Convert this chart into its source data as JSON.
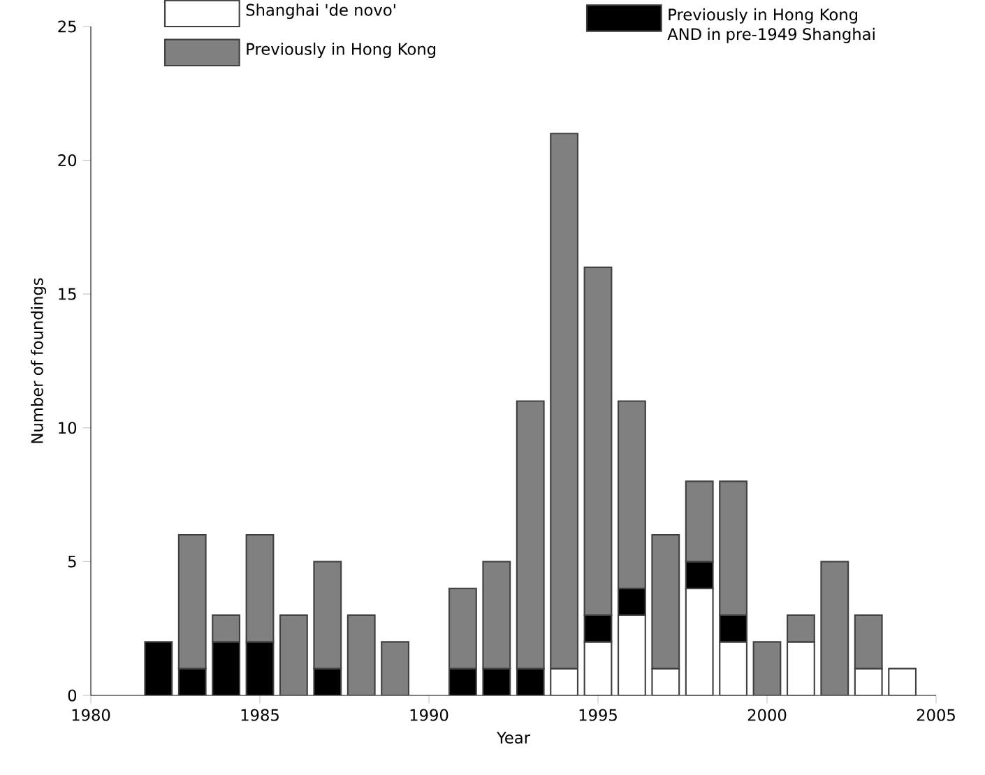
{
  "chart_data": {
    "type": "bar",
    "stacked": true,
    "xlabel": "Year",
    "ylabel": "Number of foundings",
    "x": [
      1982,
      1983,
      1984,
      1985,
      1986,
      1987,
      1988,
      1989,
      1990,
      1991,
      1992,
      1993,
      1994,
      1995,
      1996,
      1997,
      1998,
      1999,
      2000,
      2001,
      2002,
      2003,
      2004
    ],
    "series": [
      {
        "name": "Shanghai 'de novo'",
        "color": "#ffffff",
        "values": [
          0,
          0,
          0,
          0,
          0,
          0,
          0,
          0,
          0,
          0,
          0,
          0,
          1,
          2,
          3,
          1,
          4,
          2,
          0,
          2,
          0,
          1,
          1
        ]
      },
      {
        "name": "Previously in Hong Kong AND in pre-1949 Shanghai",
        "color": "#000000",
        "values": [
          2,
          1,
          2,
          2,
          0,
          1,
          0,
          0,
          0,
          1,
          1,
          1,
          0,
          1,
          1,
          0,
          1,
          1,
          0,
          0,
          0,
          0,
          0
        ]
      },
      {
        "name": "Previously in Hong Kong",
        "color": "#808080",
        "values": [
          0,
          5,
          1,
          4,
          3,
          4,
          3,
          2,
          0,
          3,
          4,
          10,
          20,
          13,
          7,
          5,
          3,
          5,
          2,
          1,
          5,
          2,
          0
        ]
      }
    ],
    "xlim": [
      1980,
      2005
    ],
    "xticks": [
      1980,
      1985,
      1990,
      1995,
      2000,
      2005
    ],
    "ylim": [
      0,
      25
    ],
    "yticks": [
      0,
      5,
      10,
      15,
      20,
      25
    ],
    "grid": false,
    "legend": "top"
  }
}
